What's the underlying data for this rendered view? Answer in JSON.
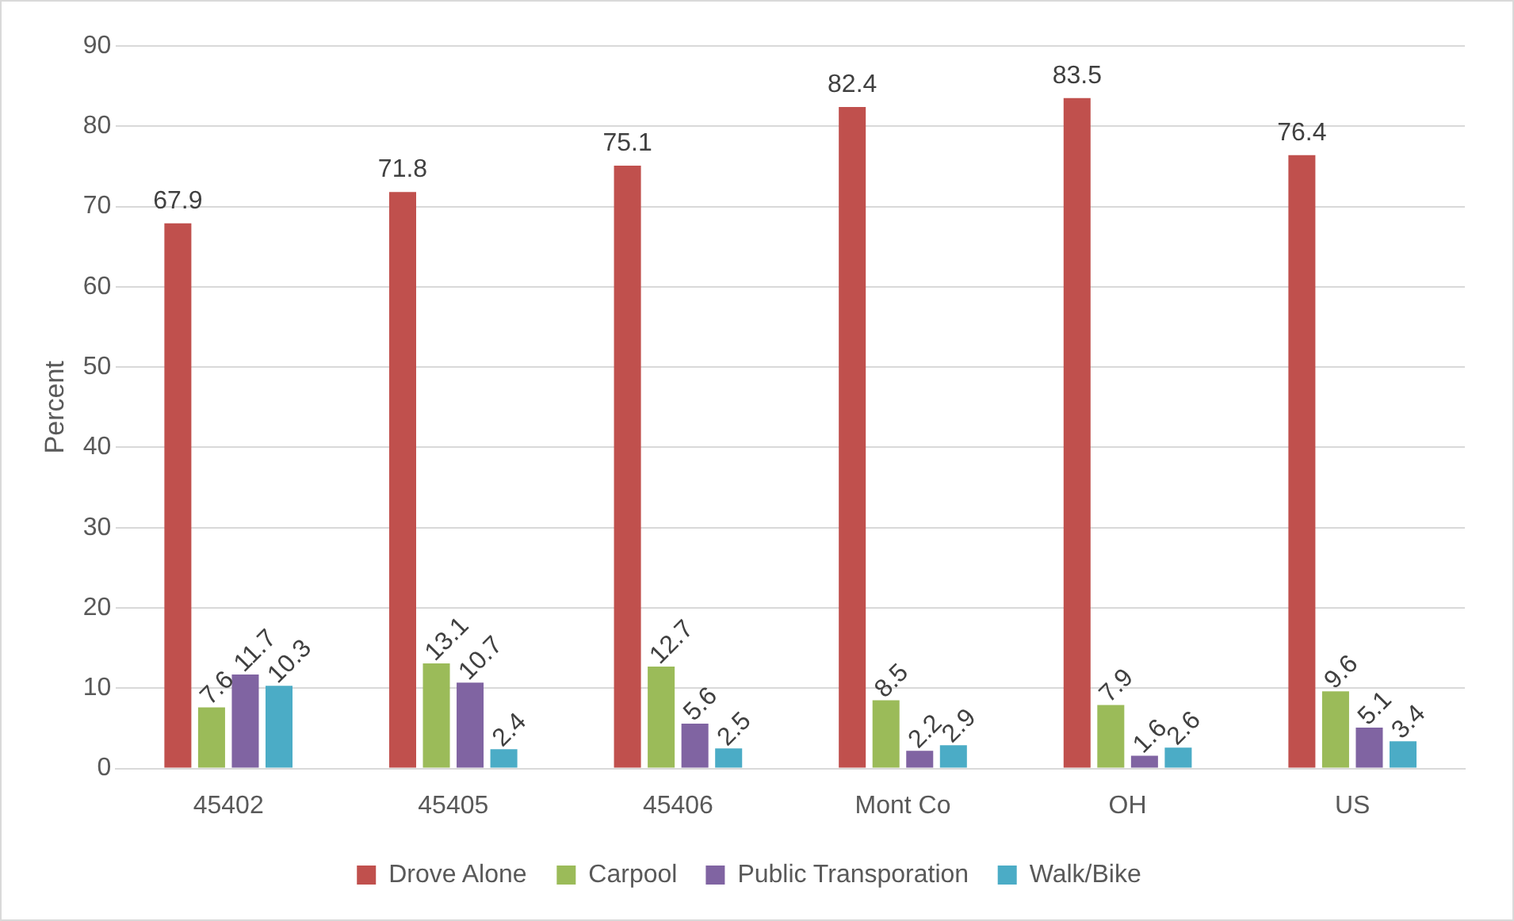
{
  "chart_data": {
    "type": "bar",
    "ylabel": "Percent",
    "categories": [
      "45402",
      "45405",
      "45406",
      "Mont Co",
      "OH",
      "US"
    ],
    "series": [
      {
        "name": "Drove Alone",
        "color": "#c0504d",
        "values": [
          67.9,
          71.8,
          75.1,
          82.4,
          83.5,
          76.4
        ]
      },
      {
        "name": "Carpool",
        "color": "#9bbb59",
        "values": [
          7.6,
          13.1,
          12.7,
          8.5,
          7.9,
          9.6
        ]
      },
      {
        "name": "Public Transporation",
        "color": "#8064a2",
        "values": [
          11.7,
          10.7,
          5.6,
          2.2,
          1.6,
          5.1
        ]
      },
      {
        "name": "Walk/Bike",
        "color": "#4bacc6",
        "values": [
          10.3,
          2.4,
          2.5,
          2.9,
          2.6,
          3.4
        ]
      }
    ],
    "ylim": [
      0,
      90
    ],
    "yticks": [
      0,
      10,
      20,
      30,
      40,
      50,
      60,
      70,
      80,
      90
    ],
    "grid": "y",
    "legend": "bottom",
    "data_labels": true
  }
}
